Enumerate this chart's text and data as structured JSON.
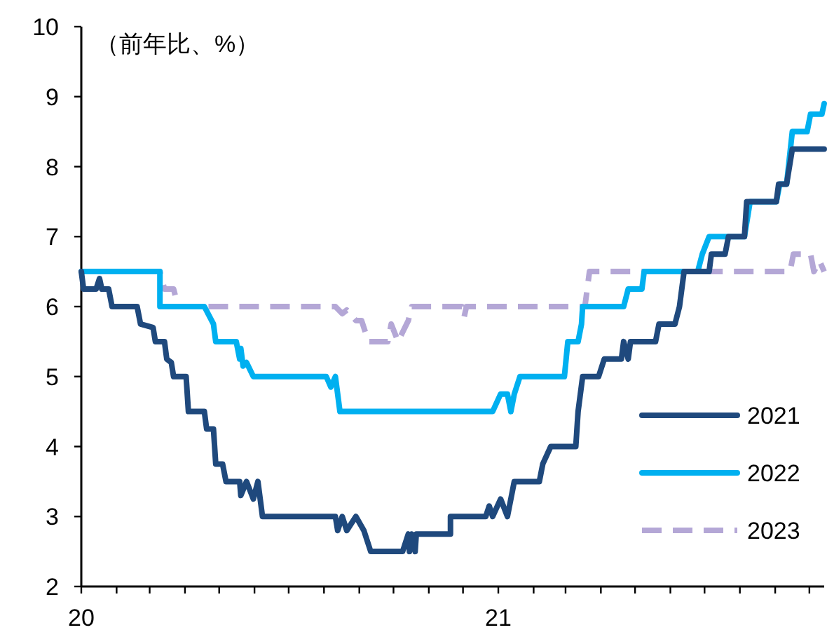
{
  "chart_data": {
    "type": "line",
    "ylabel": "（前年比、%）",
    "xlim": [
      "2020-01-01",
      "2021-10-14"
    ],
    "ylim": [
      2,
      10
    ],
    "yticks": [
      2,
      3,
      4,
      5,
      6,
      7,
      8,
      9,
      10
    ],
    "xticks": [
      {
        "value": "2020-01-01",
        "label": "20"
      },
      {
        "value": "2020-02-01",
        "label": null
      },
      {
        "value": "2020-03-01",
        "label": null
      },
      {
        "value": "2020-04-01",
        "label": null
      },
      {
        "value": "2020-05-01",
        "label": null
      },
      {
        "value": "2020-06-01",
        "label": null
      },
      {
        "value": "2020-07-01",
        "label": null
      },
      {
        "value": "2020-08-01",
        "label": null
      },
      {
        "value": "2020-09-01",
        "label": null
      },
      {
        "value": "2020-10-01",
        "label": null
      },
      {
        "value": "2020-11-01",
        "label": null
      },
      {
        "value": "2020-12-01",
        "label": null
      },
      {
        "value": "2021-01-01",
        "label": "21"
      },
      {
        "value": "2021-02-01",
        "label": null
      },
      {
        "value": "2021-03-01",
        "label": null
      },
      {
        "value": "2021-04-01",
        "label": null
      },
      {
        "value": "2021-05-01",
        "label": null
      },
      {
        "value": "2021-06-01",
        "label": null
      },
      {
        "value": "2021-07-01",
        "label": null
      },
      {
        "value": "2021-08-01",
        "label": null
      },
      {
        "value": "2021-09-01",
        "label": null
      },
      {
        "value": "2021-10-01",
        "label": null
      }
    ],
    "grid": false,
    "legend": "right",
    "series": [
      {
        "name": "2021",
        "color": "#1f497d",
        "line_style": "solid",
        "x": [
          "2020-01-01",
          "2020-01-03",
          "2020-01-14",
          "2020-01-17",
          "2020-01-19",
          "2020-01-25",
          "2020-01-28",
          "2020-02-19",
          "2020-02-22",
          "2020-03-04",
          "2020-03-06",
          "2020-03-14",
          "2020-03-16",
          "2020-03-20",
          "2020-03-22",
          "2020-04-02",
          "2020-04-04",
          "2020-04-18",
          "2020-04-20",
          "2020-04-26",
          "2020-04-28",
          "2020-05-04",
          "2020-05-07",
          "2020-05-19",
          "2020-05-20",
          "2020-05-25",
          "2020-05-31",
          "2020-06-04",
          "2020-06-08",
          "2020-08-11",
          "2020-08-13",
          "2020-08-17",
          "2020-08-21",
          "2020-08-29",
          "2020-09-05",
          "2020-09-11",
          "2020-10-09",
          "2020-10-14",
          "2020-10-15",
          "2020-10-17",
          "2020-10-20",
          "2020-10-21",
          "2020-11-20",
          "2020-11-20",
          "2020-12-21",
          "2020-12-24",
          "2020-12-27",
          "2021-01-03",
          "2021-01-09",
          "2021-01-15",
          "2021-02-06",
          "2021-02-09",
          "2021-02-16",
          "2021-03-10",
          "2021-03-12",
          "2021-03-16",
          "2021-03-30",
          "2021-04-04",
          "2021-04-19",
          "2021-04-21",
          "2021-04-25",
          "2021-04-27",
          "2021-05-19",
          "2021-05-22",
          "2021-06-05",
          "2021-06-09",
          "2021-06-13",
          "2021-07-05",
          "2021-07-07",
          "2021-07-19",
          "2021-07-22",
          "2021-08-05",
          "2021-08-07",
          "2021-09-02",
          "2021-09-04",
          "2021-09-11",
          "2021-09-16",
          "2021-10-14"
        ],
        "values": [
          6.5,
          6.25,
          6.25,
          6.4,
          6.25,
          6.25,
          6.0,
          6.0,
          5.75,
          5.7,
          5.5,
          5.5,
          5.25,
          5.2,
          5.0,
          5.0,
          4.5,
          4.5,
          4.25,
          4.25,
          3.75,
          3.75,
          3.5,
          3.5,
          3.3,
          3.5,
          3.25,
          3.5,
          3.0,
          3.0,
          2.8,
          3.0,
          2.8,
          3.0,
          2.8,
          2.5,
          2.5,
          2.75,
          2.5,
          2.75,
          2.5,
          2.75,
          2.75,
          3.0,
          3.0,
          3.15,
          3.0,
          3.25,
          3.0,
          3.5,
          3.5,
          3.75,
          4.0,
          4.0,
          4.5,
          5.0,
          5.0,
          5.25,
          5.25,
          5.5,
          5.25,
          5.5,
          5.5,
          5.75,
          5.75,
          6.0,
          6.5,
          6.5,
          6.75,
          6.75,
          7.0,
          7.0,
          7.5,
          7.5,
          7.75,
          7.75,
          8.25,
          8.25
        ]
      },
      {
        "name": "2022",
        "color": "#00b0f0",
        "line_style": "solid",
        "x": [
          "2020-01-01",
          "2020-03-10",
          "2020-03-10",
          "2020-04-18",
          "2020-04-26",
          "2020-04-28",
          "2020-05-16",
          "2020-05-19",
          "2020-05-20",
          "2020-05-22",
          "2020-05-25",
          "2020-05-31",
          "2020-08-03",
          "2020-08-07",
          "2020-08-11",
          "2020-08-15",
          "2020-12-27",
          "2021-01-03",
          "2021-01-09",
          "2021-01-12",
          "2021-01-15",
          "2021-01-20",
          "2021-02-28",
          "2021-03-03",
          "2021-03-12",
          "2021-03-15",
          "2021-03-16",
          "2021-04-21",
          "2021-04-25",
          "2021-05-07",
          "2021-05-09",
          "2021-06-25",
          "2021-06-29",
          "2021-07-05",
          "2021-08-05",
          "2021-08-10",
          "2021-09-02",
          "2021-09-05",
          "2021-09-11",
          "2021-09-16",
          "2021-09-29",
          "2021-10-02",
          "2021-10-12",
          "2021-10-14"
        ],
        "values": [
          6.5,
          6.5,
          6.0,
          6.0,
          5.75,
          5.5,
          5.5,
          5.25,
          5.4,
          5.15,
          5.2,
          5.0,
          5.0,
          4.85,
          5.0,
          4.5,
          4.5,
          4.75,
          4.75,
          4.5,
          4.75,
          5.0,
          5.0,
          5.5,
          5.5,
          5.75,
          6.0,
          6.0,
          6.25,
          6.25,
          6.5,
          6.5,
          6.75,
          7.0,
          7.0,
          7.5,
          7.5,
          7.75,
          7.75,
          8.5,
          8.5,
          8.75,
          8.75,
          8.9
        ]
      },
      {
        "name": "2023",
        "color": "#b4a7d6",
        "line_style": "dashed",
        "x": [
          "2020-01-01",
          "2020-03-10",
          "2020-03-14",
          "2020-03-22",
          "2020-03-26",
          "2020-08-11",
          "2020-08-17",
          "2020-08-21",
          "2020-08-29",
          "2020-09-03",
          "2020-09-09",
          "2020-09-26",
          "2020-09-29",
          "2020-10-05",
          "2020-10-14",
          "2020-10-17",
          "2020-11-30",
          "2020-12-02",
          "2020-12-04",
          "2021-03-18",
          "2021-03-22",
          "2021-09-14",
          "2021-09-17",
          "2021-10-02",
          "2021-10-05",
          "2021-10-10",
          "2021-10-14"
        ],
        "values": [
          6.5,
          6.5,
          6.25,
          6.25,
          6.0,
          6.0,
          5.9,
          5.95,
          5.8,
          5.8,
          5.5,
          5.5,
          5.75,
          5.5,
          5.8,
          6.0,
          6.0,
          5.85,
          6.0,
          6.0,
          6.5,
          6.5,
          6.75,
          6.75,
          6.5,
          6.65,
          6.5
        ]
      }
    ]
  }
}
